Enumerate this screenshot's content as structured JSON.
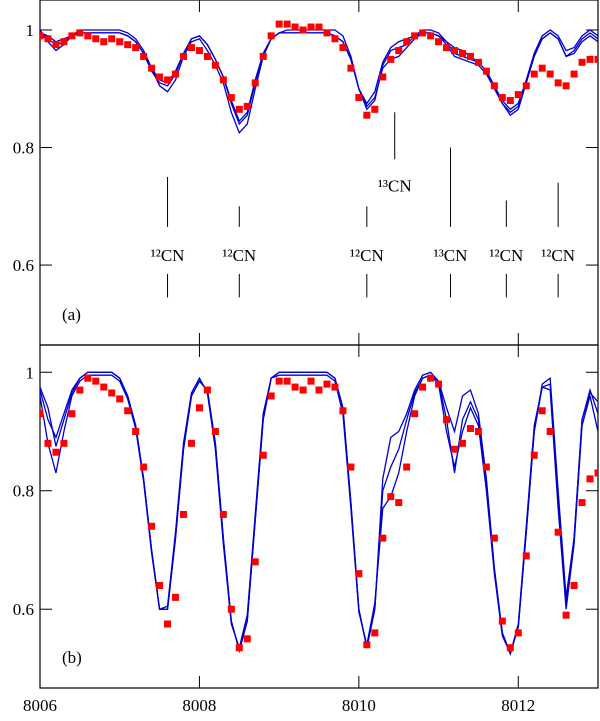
{
  "chart_data": [
    {
      "type": "line",
      "panel_label": "(a)",
      "x": [
        8006,
        8006.1,
        8006.2,
        8006.3,
        8006.4,
        8006.5,
        8006.6,
        8006.7,
        8006.8,
        8006.9,
        8007,
        8007.1,
        8007.2,
        8007.3,
        8007.4,
        8007.5,
        8007.6,
        8007.7,
        8007.8,
        8007.9,
        8008,
        8008.1,
        8008.2,
        8008.3,
        8008.4,
        8008.5,
        8008.6,
        8008.7,
        8008.8,
        8008.9,
        8009,
        8009.1,
        8009.2,
        8009.3,
        8009.4,
        8009.5,
        8009.6,
        8009.7,
        8009.8,
        8009.9,
        8010,
        8010.1,
        8010.2,
        8010.3,
        8010.4,
        8010.5,
        8010.6,
        8010.7,
        8010.8,
        8010.9,
        8011,
        8011.1,
        8011.2,
        8011.3,
        8011.4,
        8011.5,
        8011.6,
        8011.7,
        8011.8,
        8011.9,
        8012,
        8012.1,
        8012.2,
        8012.3,
        8012.4,
        8012.5,
        8012.6,
        8012.7,
        8012.8,
        8012.9,
        8013
      ],
      "xlim": [
        8006,
        8013
      ],
      "ylim": [
        0.464,
        1.051
      ],
      "yticks": [
        0.6,
        0.8,
        1
      ],
      "series": [
        {
          "style": "line",
          "color": "#0000cc",
          "values": [
            1.0,
            0.98,
            0.965,
            0.975,
            0.99,
            1.0,
            1.0,
            1.0,
            1.0,
            1.0,
            1.0,
            0.995,
            0.985,
            0.965,
            0.935,
            0.905,
            0.895,
            0.915,
            0.955,
            0.98,
            0.985,
            0.965,
            0.94,
            0.91,
            0.86,
            0.825,
            0.84,
            0.9,
            0.955,
            0.985,
            0.995,
            1.0,
            1.0,
            1.0,
            1.0,
            1.0,
            1.0,
            1.0,
            0.99,
            0.955,
            0.9,
            0.865,
            0.88,
            0.94,
            0.965,
            0.97,
            0.975,
            0.99,
            1.0,
            1.0,
            0.995,
            0.98,
            0.96,
            0.955,
            0.95,
            0.945,
            0.93,
            0.905,
            0.875,
            0.855,
            0.865,
            0.91,
            0.96,
            0.99,
            1.0,
            0.99,
            0.965,
            0.97,
            0.99,
            1.0,
            0.99
          ]
        },
        {
          "style": "line",
          "color": "#0000cc",
          "values": [
            0.99,
            0.985,
            0.975,
            0.98,
            0.99,
            0.995,
            0.995,
            0.995,
            0.995,
            0.995,
            0.995,
            0.99,
            0.98,
            0.96,
            0.93,
            0.91,
            0.905,
            0.925,
            0.96,
            0.985,
            0.99,
            0.975,
            0.95,
            0.92,
            0.875,
            0.84,
            0.855,
            0.91,
            0.96,
            0.985,
            0.995,
            0.995,
            0.995,
            0.995,
            0.995,
            0.995,
            0.995,
            0.99,
            0.98,
            0.95,
            0.9,
            0.87,
            0.885,
            0.935,
            0.95,
            0.955,
            0.97,
            0.985,
            0.995,
            0.995,
            0.99,
            0.975,
            0.955,
            0.95,
            0.945,
            0.94,
            0.925,
            0.9,
            0.875,
            0.86,
            0.87,
            0.91,
            0.955,
            0.985,
            0.995,
            0.985,
            0.955,
            0.965,
            0.985,
            0.995,
            0.985
          ]
        },
        {
          "style": "line",
          "color": "#0000cc",
          "values": [
            0.995,
            0.99,
            0.98,
            0.985,
            0.99,
            0.995,
            0.995,
            0.995,
            0.995,
            0.995,
            0.995,
            0.99,
            0.98,
            0.96,
            0.935,
            0.915,
            0.91,
            0.93,
            0.96,
            0.985,
            0.99,
            0.975,
            0.95,
            0.92,
            0.88,
            0.845,
            0.86,
            0.915,
            0.96,
            0.985,
            0.995,
            0.995,
            0.995,
            0.995,
            0.995,
            0.995,
            0.995,
            0.99,
            0.98,
            0.95,
            0.9,
            0.875,
            0.895,
            0.945,
            0.97,
            0.98,
            0.985,
            0.99,
            0.995,
            0.995,
            0.99,
            0.98,
            0.97,
            0.965,
            0.955,
            0.945,
            0.93,
            0.905,
            0.88,
            0.865,
            0.875,
            0.915,
            0.96,
            0.985,
            0.995,
            0.985,
            0.955,
            0.96,
            0.98,
            0.99,
            0.98
          ]
        },
        {
          "style": "markers",
          "color": "#ff0000",
          "values": [
            0.99,
            0.985,
            0.975,
            0.98,
            0.99,
            0.995,
            0.99,
            0.985,
            0.98,
            0.985,
            0.98,
            0.975,
            0.97,
            0.955,
            0.935,
            0.92,
            0.915,
            0.925,
            0.955,
            0.97,
            0.965,
            0.955,
            0.94,
            0.915,
            0.885,
            0.865,
            0.87,
            0.91,
            0.955,
            0.99,
            1.01,
            1.01,
            1.005,
            1.0,
            1.005,
            1.005,
            0.995,
            0.985,
            0.97,
            0.935,
            0.885,
            0.855,
            0.865,
            0.92,
            0.95,
            0.965,
            0.98,
            0.99,
            0.995,
            0.99,
            0.98,
            0.97,
            0.965,
            0.96,
            0.955,
            0.945,
            0.93,
            0.905,
            0.885,
            0.88,
            0.89,
            0.905,
            0.925,
            0.935,
            0.925,
            0.91,
            0.905,
            0.925,
            0.945,
            0.95,
            0.95
          ]
        }
      ],
      "annotations": [
        {
          "text": "¹²CN",
          "x": 8007.6,
          "y": 0.617,
          "lines": [
            [
              0.75,
              0.665
            ],
            [
              0.585,
              0.545
            ]
          ]
        },
        {
          "text": "¹²CN",
          "x": 8008.5,
          "y": 0.617,
          "lines": [
            [
              0.7,
              0.665
            ],
            [
              0.585,
              0.545
            ]
          ]
        },
        {
          "text": "¹²CN",
          "x": 8010.1,
          "y": 0.617,
          "lines": [
            [
              0.7,
              0.665
            ],
            [
              0.585,
              0.545
            ]
          ]
        },
        {
          "text": "¹³CN",
          "x": 8010.45,
          "y": 0.735,
          "lines": [
            [
              0.86,
              0.78
            ]
          ]
        },
        {
          "text": "¹³CN",
          "x": 8011.15,
          "y": 0.617,
          "lines": [
            [
              0.8,
              0.665
            ],
            [
              0.585,
              0.545
            ]
          ]
        },
        {
          "text": "¹²CN",
          "x": 8011.85,
          "y": 0.617,
          "lines": [
            [
              0.71,
              0.665
            ],
            [
              0.585,
              0.545
            ]
          ]
        },
        {
          "text": "¹²CN",
          "x": 8012.5,
          "y": 0.617,
          "lines": [
            [
              0.74,
              0.665
            ],
            [
              0.585,
              0.545
            ]
          ]
        }
      ]
    },
    {
      "type": "line",
      "panel_label": "(b)",
      "x": [
        8006,
        8006.1,
        8006.2,
        8006.3,
        8006.4,
        8006.5,
        8006.6,
        8006.7,
        8006.8,
        8006.9,
        8007,
        8007.1,
        8007.2,
        8007.3,
        8007.4,
        8007.5,
        8007.6,
        8007.7,
        8007.8,
        8007.9,
        8008,
        8008.1,
        8008.2,
        8008.3,
        8008.4,
        8008.5,
        8008.6,
        8008.7,
        8008.8,
        8008.9,
        8009,
        8009.1,
        8009.2,
        8009.3,
        8009.4,
        8009.5,
        8009.6,
        8009.7,
        8009.8,
        8009.9,
        8010,
        8010.1,
        8010.2,
        8010.3,
        8010.4,
        8010.5,
        8010.6,
        8010.7,
        8010.8,
        8010.9,
        8011,
        8011.1,
        8011.2,
        8011.3,
        8011.4,
        8011.5,
        8011.6,
        8011.7,
        8011.8,
        8011.9,
        8012,
        8012.1,
        8012.2,
        8012.3,
        8012.4,
        8012.5,
        8012.6,
        8012.7,
        8012.8,
        8012.9,
        8013
      ],
      "xlim": [
        8006,
        8013
      ],
      "ylim": [
        0.467,
        1.046
      ],
      "yticks": [
        0.6,
        0.8,
        1
      ],
      "xticks": [
        8006,
        8008,
        8010,
        8012
      ],
      "series": [
        {
          "style": "line",
          "color": "#0000cc",
          "values": [
            0.97,
            0.92,
            0.89,
            0.93,
            0.97,
            0.99,
            1.0,
            1.0,
            1.0,
            1.0,
            0.99,
            0.96,
            0.91,
            0.82,
            0.7,
            0.6,
            0.6,
            0.72,
            0.87,
            0.96,
            0.985,
            0.97,
            0.88,
            0.72,
            0.58,
            0.53,
            0.58,
            0.75,
            0.92,
            0.99,
            1.0,
            1.0,
            1.0,
            1.0,
            1.0,
            1.0,
            1.0,
            0.99,
            0.94,
            0.78,
            0.6,
            0.535,
            0.6,
            0.82,
            0.89,
            0.9,
            0.93,
            0.97,
            0.995,
            1.0,
            0.985,
            0.94,
            0.9,
            0.96,
            0.97,
            0.93,
            0.82,
            0.67,
            0.56,
            0.525,
            0.57,
            0.73,
            0.9,
            0.98,
            0.99,
            0.8,
            0.62,
            0.72,
            0.92,
            0.97,
            0.93
          ]
        },
        {
          "style": "line",
          "color": "#0000cc",
          "values": [
            0.96,
            0.88,
            0.83,
            0.9,
            0.96,
            0.985,
            0.995,
            0.995,
            0.995,
            0.995,
            0.985,
            0.955,
            0.905,
            0.815,
            0.695,
            0.6,
            0.605,
            0.73,
            0.88,
            0.965,
            0.99,
            0.965,
            0.87,
            0.71,
            0.575,
            0.535,
            0.59,
            0.76,
            0.93,
            0.99,
            0.995,
            0.995,
            0.995,
            0.995,
            0.995,
            0.995,
            0.995,
            0.985,
            0.93,
            0.77,
            0.595,
            0.54,
            0.61,
            0.77,
            0.79,
            0.83,
            0.9,
            0.96,
            0.99,
            0.995,
            0.98,
            0.9,
            0.84,
            0.9,
            0.94,
            0.91,
            0.8,
            0.66,
            0.555,
            0.525,
            0.575,
            0.74,
            0.91,
            0.975,
            0.97,
            0.77,
            0.6,
            0.71,
            0.91,
            0.96,
            0.9
          ]
        },
        {
          "style": "line",
          "color": "#0000cc",
          "values": [
            0.975,
            0.94,
            0.875,
            0.92,
            0.965,
            0.99,
            1.0,
            1.0,
            1.0,
            1.0,
            0.99,
            0.96,
            0.91,
            0.82,
            0.7,
            0.6,
            0.6,
            0.72,
            0.87,
            0.96,
            0.985,
            0.97,
            0.88,
            0.72,
            0.58,
            0.53,
            0.58,
            0.75,
            0.92,
            0.99,
            1.0,
            1.0,
            1.0,
            1.0,
            1.0,
            1.0,
            1.0,
            0.99,
            0.94,
            0.78,
            0.6,
            0.535,
            0.6,
            0.8,
            0.84,
            0.87,
            0.92,
            0.965,
            0.99,
            0.995,
            0.985,
            0.92,
            0.83,
            0.92,
            0.95,
            0.92,
            0.81,
            0.665,
            0.56,
            0.525,
            0.57,
            0.73,
            0.9,
            0.975,
            0.98,
            0.79,
            0.61,
            0.72,
            0.92,
            0.965,
            0.95
          ]
        },
        {
          "style": "markers",
          "color": "#ff0000",
          "values": [
            0.93,
            0.88,
            0.865,
            0.88,
            0.93,
            0.97,
            0.99,
            0.985,
            0.975,
            0.965,
            0.955,
            0.935,
            0.9,
            0.84,
            0.74,
            0.64,
            0.575,
            0.62,
            0.76,
            0.88,
            0.94,
            0.97,
            0.9,
            0.76,
            0.6,
            0.535,
            0.55,
            0.68,
            0.86,
            0.96,
            0.985,
            0.985,
            0.975,
            0.97,
            0.985,
            0.97,
            0.98,
            0.975,
            0.935,
            0.84,
            0.66,
            0.54,
            0.56,
            0.72,
            0.79,
            0.78,
            0.84,
            0.93,
            0.975,
            0.99,
            0.98,
            0.92,
            0.87,
            0.88,
            0.905,
            0.9,
            0.84,
            0.72,
            0.58,
            0.535,
            0.56,
            0.69,
            0.86,
            0.935,
            0.9,
            0.73,
            0.59,
            0.64,
            0.78,
            0.82,
            0.83
          ]
        }
      ]
    }
  ]
}
